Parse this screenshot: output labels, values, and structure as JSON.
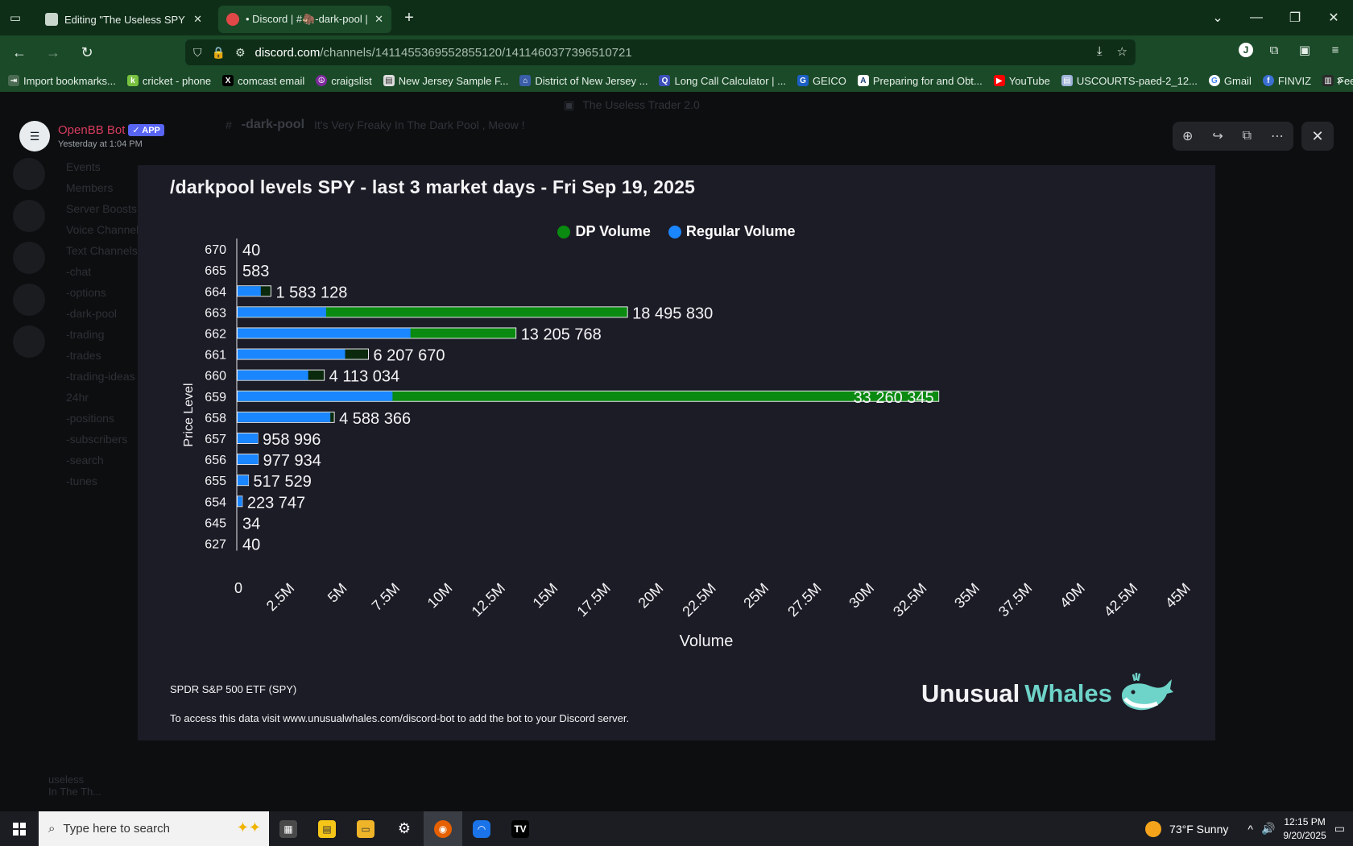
{
  "browser": {
    "tabs": [
      {
        "label": "Editing \"The Useless SPY Report\"",
        "active": false
      },
      {
        "label": "• Discord | #🦣-dark-pool | The",
        "active": true
      }
    ],
    "url_host": "discord.com",
    "url_path": "/channels/1411455369552855120/1411460377396510721",
    "bookmarks": [
      "Import bookmarks...",
      "cricket - phone",
      "comcast email",
      "craigslist",
      "New Jersey Sample F...",
      "District of New Jersey ...",
      "Long Call Calculator | ...",
      "GEICO",
      "Preparing for and Obt...",
      "YouTube",
      "USCOURTS-paed-2_12...",
      "Gmail",
      "FINVIZ",
      "Feed | Utradea"
    ]
  },
  "discord": {
    "server_name": "The Useless Trader 2.0",
    "channel_name": "-dark-pool",
    "channel_topic": "It's Very Freaky In The Dark Pool , Meow !",
    "sidebar_items": [
      "Events",
      "Members",
      "Server Boosts"
    ],
    "channel_items": [
      "Voice Channels",
      "Text Channels",
      "-chat",
      "-options",
      "-dark-pool",
      "-trading",
      "-trades",
      "-trading-ideas",
      "24hr",
      "-positions",
      "-subscribers",
      "-search",
      "-tunes"
    ],
    "user_name": "useless",
    "user_status": "In The Th..."
  },
  "message": {
    "author": "OpenBB Bot",
    "badge": "APP",
    "timestamp": "Yesterday at 1:04 PM"
  },
  "chart_data": {
    "type": "bar",
    "orientation": "horizontal",
    "stacked": true,
    "title": "/darkpool levels SPY - last 3 market days - Fri Sep 19, 2025",
    "xlabel": "Volume",
    "ylabel": "Price Level",
    "xlim": [
      0,
      45000000
    ],
    "x_ticks": [
      "0",
      "2.5M",
      "5M",
      "7.5M",
      "10M",
      "12.5M",
      "15M",
      "17.5M",
      "20M",
      "22.5M",
      "25M",
      "27.5M",
      "30M",
      "32.5M",
      "35M",
      "37.5M",
      "40M",
      "42.5M",
      "45M"
    ],
    "legend": {
      "position": "top"
    },
    "categories": [
      "670",
      "665",
      "664",
      "663",
      "662",
      "661",
      "660",
      "659",
      "658",
      "657",
      "656",
      "655",
      "654",
      "645",
      "627"
    ],
    "series": [
      {
        "name": "Regular Volume",
        "color": "#1a86ff",
        "values": [
          0,
          0,
          1100000,
          4200000,
          8200000,
          5100000,
          3350000,
          7350000,
          4400000,
          1350000,
          1550000,
          750000,
          400000,
          0,
          0
        ]
      },
      {
        "name": "DP Volume",
        "color": "#0a8a10",
        "values": [
          40,
          583,
          1583128,
          18495830,
          13205768,
          6207670,
          4113034,
          33260345,
          4588366,
          958996,
          977934,
          517529,
          223747,
          34,
          40
        ]
      }
    ],
    "dp_labels": [
      "40",
      "583",
      "1 583 128",
      "18 495 830",
      "13 205 768",
      "6 207 670",
      "4 113 034",
      "33 260 345",
      "4 588 366",
      "958 996",
      "977 934",
      "517 529",
      "223 747",
      "34",
      "40"
    ]
  },
  "card": {
    "etf_name": "SPDR S&P 500 ETF (SPY)",
    "access_text": "To access this data visit www.unusualwhales.com/discord-bot to add the bot to your Discord server.",
    "brand_1": "Unusual",
    "brand_2": "Whales"
  },
  "taskbar": {
    "search_placeholder": "Type here to search",
    "weather": "73°F  Sunny",
    "time": "12:15 PM",
    "date": "9/20/2025"
  },
  "colors": {
    "dp_bright": "#0a8a10",
    "dp_dark": "#0b2a0d",
    "regular": "#1a86ff",
    "card_bg": "#1c1c26"
  }
}
